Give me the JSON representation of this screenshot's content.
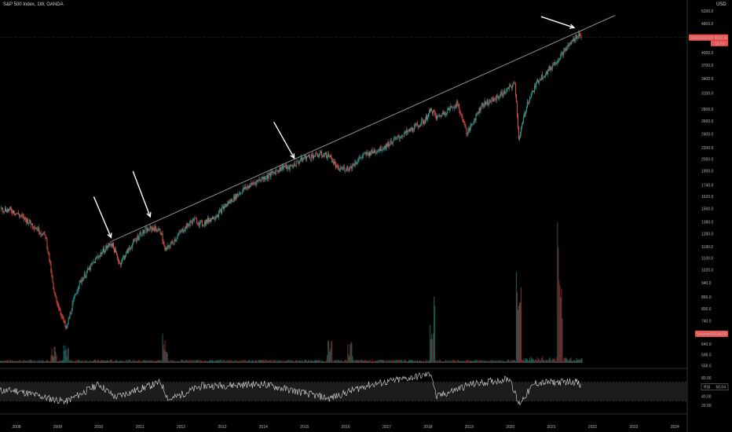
{
  "header": {
    "title": "S&P 500 Index, 1W, OANDA",
    "currency": "USD"
  },
  "colors": {
    "background": "#000000",
    "up": "#26a69a",
    "down": "#ef5350",
    "trendline": "#9e9e9e",
    "arrows": "#ffffff",
    "rsi_line": "#e0e0e0",
    "rsi_band": "#1c1c1c",
    "badge": "#ef5350"
  },
  "badges": {
    "price_symbol": "SPX500USD",
    "price_value": "4397.9",
    "price_sub": "18:19",
    "volume_label": "Volume",
    "volume_value": "693.882K",
    "rsi_label": "RSI",
    "rsi_value": "60.04"
  },
  "chart_data": {
    "type": "candlestick",
    "title": "S&P 500 Index, 1W, OANDA",
    "y_scale": "log",
    "ylim": [
      560,
      5300
    ],
    "y_ticks": [
      5200,
      4800,
      4400,
      4000,
      3700,
      3400,
      3100,
      2800,
      2600,
      2400,
      2200,
      2050,
      1900,
      1740,
      1620,
      1500,
      1380,
      1280,
      1180,
      1100,
      1020,
      940,
      860,
      800,
      740,
      680,
      640,
      598,
      558
    ],
    "x_ticks": [
      "2008",
      "2009",
      "2010",
      "2011",
      "2012",
      "2013",
      "2014",
      "2015",
      "2016",
      "2017",
      "2018",
      "2019",
      "2020",
      "2021",
      "2022",
      "2023",
      "2024"
    ],
    "xlim": [
      2007.6,
      2024.3
    ],
    "series": [
      {
        "name": "SPX500USD",
        "x": [
          2007.6,
          2007.9,
          2008.3,
          2008.7,
          2008.9,
          2009.2,
          2009.5,
          2010.0,
          2010.3,
          2010.5,
          2010.7,
          2011.0,
          2011.3,
          2011.5,
          2011.6,
          2011.8,
          2012.0,
          2012.3,
          2012.5,
          2012.9,
          2013.0,
          2013.4,
          2013.5,
          2013.9,
          2014.1,
          2014.5,
          2014.6,
          2014.8,
          2015.0,
          2015.4,
          2015.6,
          2015.8,
          2016.1,
          2016.4,
          2016.9,
          2017.1,
          2017.5,
          2017.9,
          2018.08,
          2018.2,
          2018.7,
          2018.95,
          2019.3,
          2019.6,
          2019.9,
          2020.1,
          2020.2,
          2020.4,
          2020.7,
          2020.9,
          2021.2,
          2021.5,
          2021.66,
          2021.72
        ],
        "y": [
          1500,
          1480,
          1380,
          1260,
          880,
          700,
          930,
          1120,
          1210,
          1060,
          1150,
          1280,
          1330,
          1300,
          1150,
          1220,
          1300,
          1400,
          1360,
          1450,
          1500,
          1650,
          1690,
          1800,
          1840,
          1960,
          1930,
          2000,
          2070,
          2110,
          2090,
          1920,
          1940,
          2090,
          2200,
          2280,
          2430,
          2600,
          2800,
          2650,
          2900,
          2400,
          2880,
          2980,
          3150,
          3300,
          2300,
          2900,
          3400,
          3550,
          3900,
          4300,
          4500,
          4400
        ]
      },
      {
        "name": "Volume",
        "x": [
          2008.9,
          2009.2,
          2011.6,
          2015.6,
          2016.1,
          2018.1,
          2020.2,
          2021.2
        ],
        "y": [
          60,
          55,
          95,
          70,
          65,
          210,
          260,
          230
        ]
      },
      {
        "name": "RSI",
        "x": [
          2008.0,
          2008.8,
          2009.2,
          2010.0,
          2010.4,
          2011.5,
          2011.7,
          2012.5,
          2014.0,
          2015.6,
          2016.5,
          2017.9,
          2018.08,
          2018.2,
          2019.0,
          2020.0,
          2020.2,
          2020.6,
          2021.0,
          2021.6,
          2021.72
        ],
        "y": [
          52,
          35,
          28,
          66,
          38,
          70,
          32,
          62,
          66,
          35,
          63,
          85,
          90,
          38,
          65,
          78,
          22,
          68,
          70,
          72,
          60
        ]
      }
    ]
  }
}
